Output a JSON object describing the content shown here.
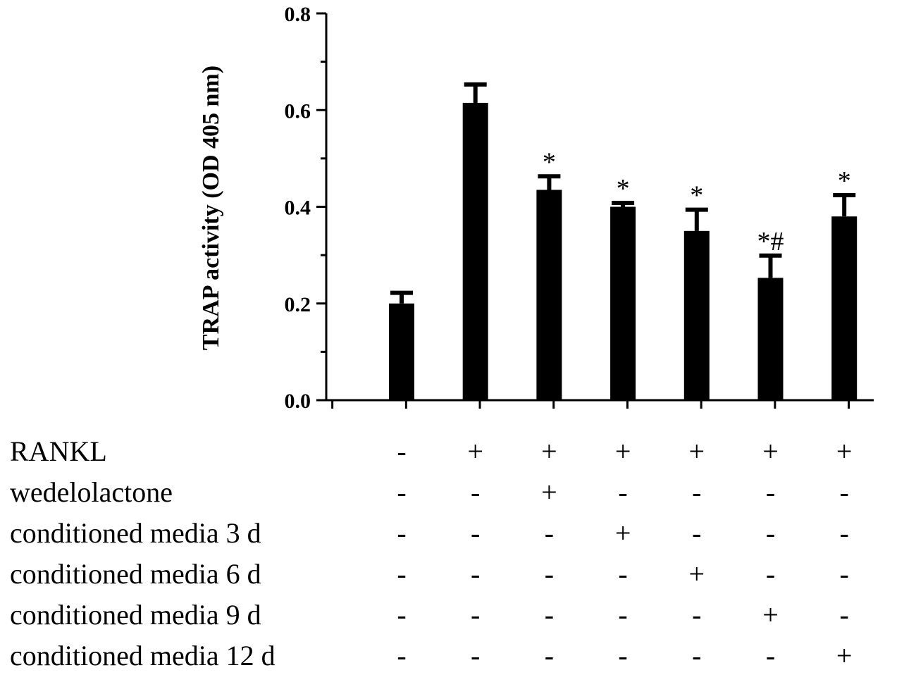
{
  "chart_data": {
    "type": "bar",
    "title": "",
    "xlabel": "",
    "ylabel": "TRAP activity (OD 405 nm)",
    "ylim": [
      0,
      0.8
    ],
    "yticks": [
      "0.0",
      "0.2",
      "0.4",
      "0.6",
      "0.8"
    ],
    "ytick_values": [
      0,
      0.2,
      0.4,
      0.6,
      0.8
    ],
    "grid": false,
    "bar_color": "#000000",
    "values": [
      0.2,
      0.615,
      0.435,
      0.4,
      0.35,
      0.253,
      0.38
    ],
    "errors": [
      0.022,
      0.038,
      0.028,
      0.008,
      0.044,
      0.046,
      0.044
    ],
    "annotations": [
      "",
      "",
      "*",
      "*",
      "*",
      "*#",
      "*"
    ],
    "condition_table": {
      "rows": [
        {
          "label": "RANKL",
          "values": [
            "-",
            "+",
            "+",
            "+",
            "+",
            "+",
            "+"
          ]
        },
        {
          "label": "wedelolactone",
          "values": [
            "-",
            "-",
            "+",
            "-",
            "-",
            "-",
            "-"
          ]
        },
        {
          "label": "conditioned media 3 d",
          "values": [
            "-",
            "-",
            "-",
            "+",
            "-",
            "-",
            "-"
          ]
        },
        {
          "label": "conditioned media 6 d",
          "values": [
            "-",
            "-",
            "-",
            "-",
            "+",
            "-",
            "-"
          ]
        },
        {
          "label": "conditioned media 9 d",
          "values": [
            "-",
            "-",
            "-",
            "-",
            "-",
            "+",
            "-"
          ]
        },
        {
          "label": "conditioned media 12 d",
          "values": [
            "-",
            "-",
            "-",
            "-",
            "-",
            "-",
            "+"
          ]
        }
      ]
    }
  }
}
